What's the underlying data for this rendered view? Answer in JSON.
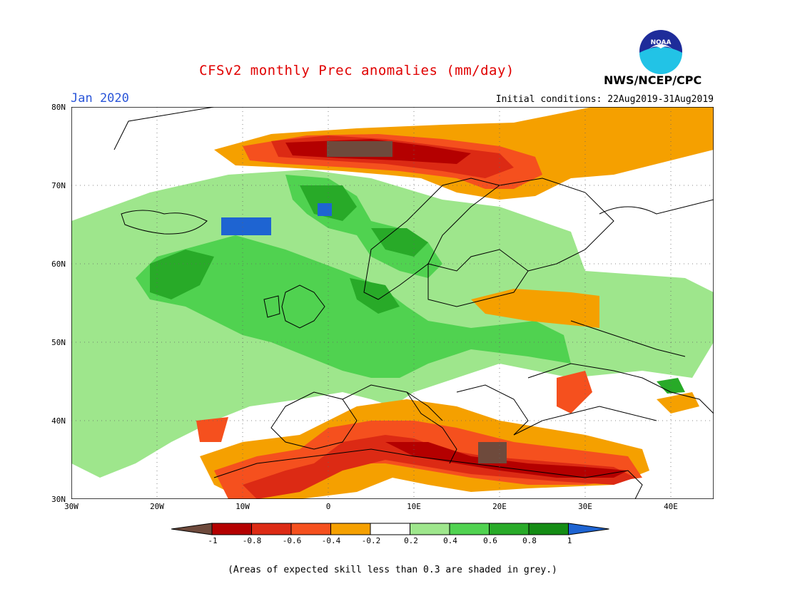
{
  "title": "CFSv2 monthly Prec anomalies (mm/day)",
  "month": "Jan 2020",
  "initial_conditions": "Initial conditions: 22Aug2019-31Aug2019",
  "agency": "NWS/NCEP/CPC",
  "logo_text": "NOAA",
  "note": "(Areas of expected skill less than 0.3 are shaded in grey.)",
  "lat_labels": [
    "80N",
    "70N",
    "60N",
    "50N",
    "40N",
    "30N"
  ],
  "lon_labels": [
    "30W",
    "20W",
    "10W",
    "0",
    "10E",
    "20E",
    "30E",
    "40E"
  ],
  "colorbar": {
    "labels": [
      "-1",
      "-0.8",
      "-0.6",
      "-0.4",
      "-0.2",
      "0.2",
      "0.4",
      "0.6",
      "0.8",
      "1"
    ],
    "colors": [
      "#6e4a3c",
      "#b40000",
      "#dc2a14",
      "#f5501e",
      "#f5a000",
      "#ffffff",
      "#9ee68c",
      "#50d250",
      "#28aa28",
      "#148c14",
      "#1e64d2"
    ]
  },
  "map_extent": {
    "lon": [
      -30,
      45
    ],
    "lat": [
      30,
      80
    ]
  }
}
